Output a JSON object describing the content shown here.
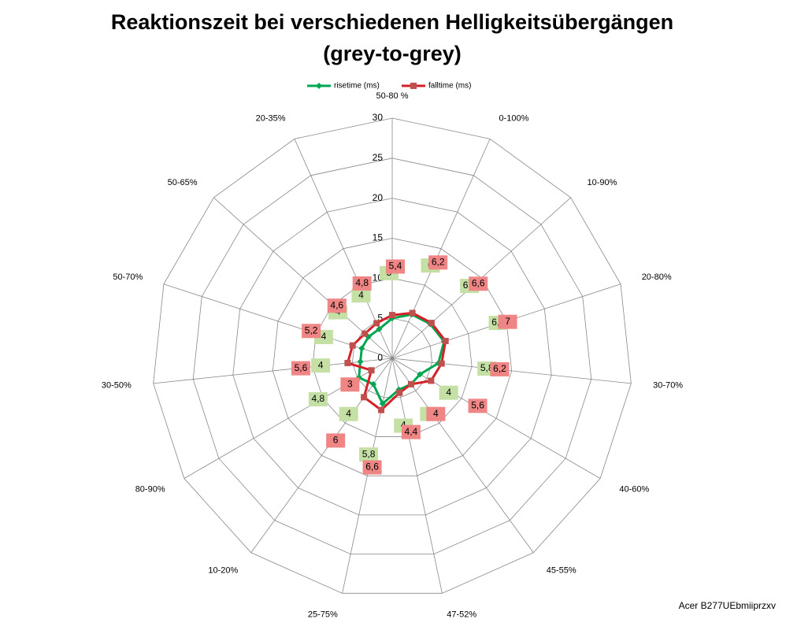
{
  "chart_data": {
    "type": "radar",
    "title": [
      "Reaktionszeit bei verschiedenen Helligkeitsübergängen",
      "(grey-to-grey)"
    ],
    "categories": [
      "50-80 %",
      "0-100%",
      "10-90%",
      "20-80%",
      "30-70%",
      "40-60%",
      "45-55%",
      "47-52%",
      "25-75%",
      "10-20%",
      "80-90%",
      "30-50%",
      "50-70%",
      "50-65%",
      "20-35%"
    ],
    "series": [
      {
        "name": "risetime (ms)",
        "color": "#00a651",
        "label_color": "#c5e0a5",
        "values": [
          5,
          6,
          6.4,
          6.8,
          5.8,
          4,
          4,
          4,
          5.8,
          4,
          4.8,
          4,
          4,
          4,
          4
        ],
        "value_labels": [
          "5",
          "6",
          "6,4",
          "6,8",
          "5,8",
          "4",
          "4",
          "4",
          "5,8",
          "4",
          "4,8",
          "4",
          "4",
          "4",
          "4"
        ]
      },
      {
        "name": "falltime (ms)",
        "color": "#d42027",
        "label_color": "#f08585",
        "values": [
          5.4,
          6.2,
          6.6,
          7,
          6.2,
          5.6,
          4,
          4.4,
          6.6,
          6,
          3,
          5.6,
          5.2,
          4.6,
          4.8
        ],
        "value_labels": [
          "5,4",
          "6,2",
          "6,6",
          "7",
          "6,2",
          "5,6",
          "4",
          "4,4",
          "6,6",
          "6",
          "3",
          "5,6",
          "5,2",
          "4,6",
          "4,8"
        ]
      }
    ],
    "ylim": [
      0,
      30
    ],
    "yticks": [
      0,
      5,
      10,
      15,
      20,
      25,
      30
    ],
    "grid": true,
    "legend": "top",
    "footnote": "Acer B277UEbmiiprzxv"
  }
}
